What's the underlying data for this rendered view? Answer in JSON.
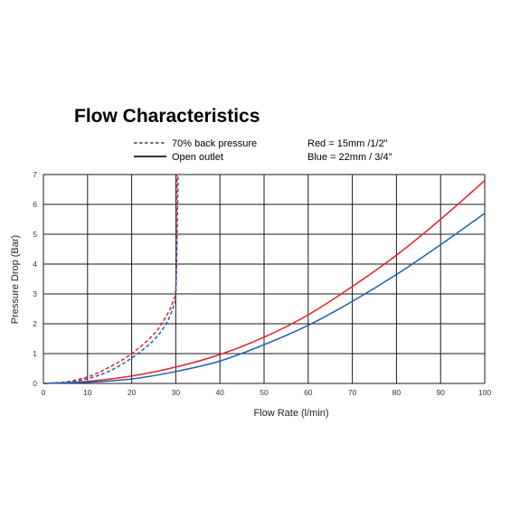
{
  "chart_data": {
    "type": "line",
    "title": "Flow Characteristics",
    "xlabel": "Flow Rate (l/min)",
    "ylabel": "Pressure Drop (Bar)",
    "xlim": [
      0,
      100
    ],
    "ylim": [
      0,
      7
    ],
    "x_ticks": [
      "0",
      "10",
      "20",
      "30",
      "40",
      "50",
      "60",
      "70",
      "80",
      "90",
      "100"
    ],
    "y_ticks": [
      "0",
      "1",
      "2",
      "3",
      "4",
      "5",
      "6",
      "7"
    ],
    "grid": true,
    "legend": {
      "line_styles": [
        {
          "style": "dashed",
          "label": "70% back pressure"
        },
        {
          "style": "solid",
          "label": "Open outlet"
        }
      ],
      "color_notes": [
        "Red = 15mm /1/2\"",
        "Blue = 22mm / 3/4\""
      ]
    },
    "colors": {
      "red": "#e8202a",
      "blue": "#1f5fae",
      "title": "#e8202a",
      "grid": "#1a1a1a"
    },
    "series": [
      {
        "color": "red",
        "style": "solid",
        "x": [
          0,
          10,
          20,
          30,
          40,
          50,
          60,
          70,
          80,
          90,
          100
        ],
        "y": [
          0,
          0.07,
          0.25,
          0.55,
          0.97,
          1.55,
          2.3,
          3.25,
          4.3,
          5.5,
          6.8
        ]
      },
      {
        "color": "blue",
        "style": "solid",
        "x": [
          0,
          10,
          20,
          30,
          40,
          50,
          60,
          70,
          80,
          90,
          100
        ],
        "y": [
          0,
          0.04,
          0.15,
          0.4,
          0.75,
          1.3,
          1.95,
          2.75,
          3.65,
          4.65,
          5.7
        ]
      },
      {
        "color": "red",
        "style": "dashed",
        "x": [
          0,
          5,
          10,
          15,
          20,
          25,
          28,
          29.5,
          30,
          30.1,
          30.2
        ],
        "y": [
          0,
          0.05,
          0.22,
          0.55,
          1.0,
          1.65,
          2.3,
          2.8,
          3.2,
          5.0,
          7.0
        ]
      },
      {
        "color": "blue",
        "style": "dashed",
        "x": [
          0,
          5,
          10,
          15,
          20,
          25,
          28,
          29.5,
          30,
          30.3,
          30.5
        ],
        "y": [
          0,
          0.04,
          0.16,
          0.42,
          0.85,
          1.45,
          2.05,
          2.6,
          3.0,
          5.0,
          7.0
        ]
      }
    ]
  }
}
